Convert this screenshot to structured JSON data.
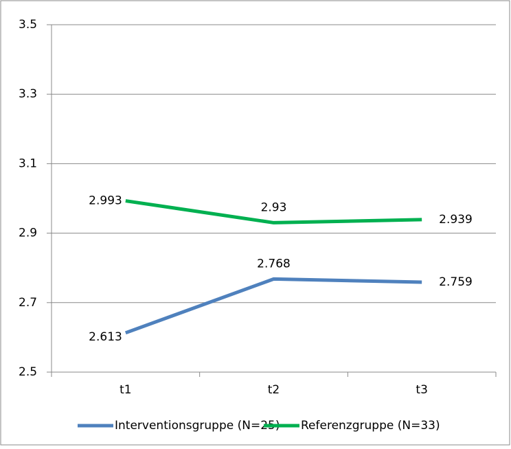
{
  "chart_data": {
    "type": "line",
    "categories": [
      "t1",
      "t2",
      "t3"
    ],
    "series": [
      {
        "name": "Interventionsgruppe (N=25)",
        "color": "#4f81bd",
        "values": [
          2.613,
          2.768,
          2.759
        ]
      },
      {
        "name": "Referenzgruppe (N=33)",
        "color": "#00b050",
        "values": [
          2.993,
          2.93,
          2.939
        ]
      }
    ],
    "ylim": [
      2.5,
      3.5
    ],
    "yticks": [
      2.5,
      2.7,
      2.9,
      3.1,
      3.3,
      3.5
    ],
    "grid": true,
    "legend": "bottom"
  }
}
